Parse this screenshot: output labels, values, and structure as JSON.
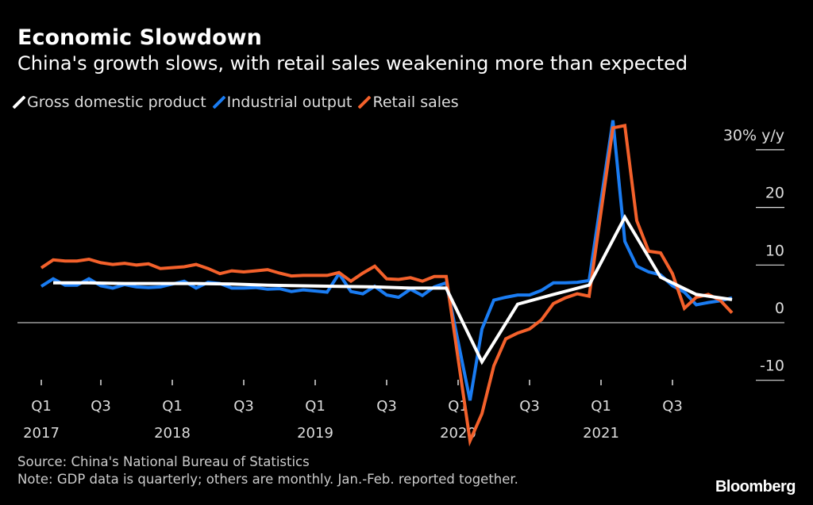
{
  "title": "Economic Slowdown",
  "subtitle": "China's growth slows, with retail sales weakening more than expected",
  "source": "Source: China's National Bureau of Statistics",
  "note": "Note: GDP data is quarterly; others are monthly. Jan.-Feb. reported together.",
  "logo": "Bloomberg",
  "chart_data": {
    "type": "line",
    "ylim": [
      -10,
      30
    ],
    "yunit": "% y/y",
    "yticks": [
      {
        "v": 30,
        "label": "30% y/y"
      },
      {
        "v": 20,
        "label": "20"
      },
      {
        "v": 10,
        "label": "10"
      },
      {
        "v": 0,
        "label": "0"
      },
      {
        "v": -10,
        "label": "-10"
      }
    ],
    "xrange": [
      "2017-02",
      "2021-12"
    ],
    "xticks": [
      {
        "date": "2017-01",
        "q": "Q1",
        "year": "2017"
      },
      {
        "date": "2017-07",
        "q": "Q3",
        "year": ""
      },
      {
        "date": "2018-01",
        "q": "Q1",
        "year": "2018"
      },
      {
        "date": "2018-07",
        "q": "Q3",
        "year": ""
      },
      {
        "date": "2019-01",
        "q": "Q1",
        "year": "2019"
      },
      {
        "date": "2019-07",
        "q": "Q3",
        "year": ""
      },
      {
        "date": "2020-01",
        "q": "Q1",
        "year": "2020"
      },
      {
        "date": "2020-07",
        "q": "Q3",
        "year": ""
      },
      {
        "date": "2021-01",
        "q": "Q1",
        "year": "2021"
      },
      {
        "date": "2021-07",
        "q": "Q3",
        "year": ""
      }
    ],
    "legend_placement": "top-left",
    "grid": false,
    "series": [
      {
        "name": "Gross domestic product",
        "color": "#ffffff",
        "points": [
          [
            "2017-03",
            6.9
          ],
          [
            "2017-06",
            6.9
          ],
          [
            "2017-09",
            6.8
          ],
          [
            "2017-12",
            6.8
          ],
          [
            "2018-03",
            6.8
          ],
          [
            "2018-06",
            6.7
          ],
          [
            "2018-09",
            6.5
          ],
          [
            "2018-12",
            6.4
          ],
          [
            "2019-03",
            6.3
          ],
          [
            "2019-06",
            6.2
          ],
          [
            "2019-09",
            6.0
          ],
          [
            "2019-12",
            6.0
          ],
          [
            "2020-03",
            -6.8
          ],
          [
            "2020-06",
            3.2
          ],
          [
            "2020-09",
            4.9
          ],
          [
            "2020-12",
            6.5
          ],
          [
            "2021-03",
            18.3
          ],
          [
            "2021-06",
            7.9
          ],
          [
            "2021-09",
            4.9
          ],
          [
            "2021-12",
            4.0
          ]
        ]
      },
      {
        "name": "Industrial output",
        "color": "#1a7cf2",
        "points": [
          [
            "2017-02",
            6.3
          ],
          [
            "2017-03",
            7.6
          ],
          [
            "2017-04",
            6.5
          ],
          [
            "2017-05",
            6.5
          ],
          [
            "2017-06",
            7.6
          ],
          [
            "2017-07",
            6.4
          ],
          [
            "2017-08",
            6.0
          ],
          [
            "2017-09",
            6.6
          ],
          [
            "2017-10",
            6.2
          ],
          [
            "2017-11",
            6.1
          ],
          [
            "2017-12",
            6.2
          ],
          [
            "2018-02",
            7.2
          ],
          [
            "2018-03",
            6.0
          ],
          [
            "2018-04",
            7.0
          ],
          [
            "2018-05",
            6.8
          ],
          [
            "2018-06",
            6.0
          ],
          [
            "2018-07",
            6.0
          ],
          [
            "2018-08",
            6.1
          ],
          [
            "2018-09",
            5.8
          ],
          [
            "2018-10",
            5.9
          ],
          [
            "2018-11",
            5.4
          ],
          [
            "2018-12",
            5.7
          ],
          [
            "2019-02",
            5.3
          ],
          [
            "2019-03",
            8.5
          ],
          [
            "2019-04",
            5.4
          ],
          [
            "2019-05",
            5.0
          ],
          [
            "2019-06",
            6.3
          ],
          [
            "2019-07",
            4.8
          ],
          [
            "2019-08",
            4.4
          ],
          [
            "2019-09",
            5.8
          ],
          [
            "2019-10",
            4.7
          ],
          [
            "2019-11",
            6.2
          ],
          [
            "2019-12",
            6.9
          ],
          [
            "2020-02",
            -13.5
          ],
          [
            "2020-03",
            -1.1
          ],
          [
            "2020-04",
            3.9
          ],
          [
            "2020-05",
            4.4
          ],
          [
            "2020-06",
            4.8
          ],
          [
            "2020-07",
            4.8
          ],
          [
            "2020-08",
            5.6
          ],
          [
            "2020-09",
            6.9
          ],
          [
            "2020-10",
            6.9
          ],
          [
            "2020-11",
            7.0
          ],
          [
            "2020-12",
            7.3
          ],
          [
            "2021-02",
            35.1
          ],
          [
            "2021-03",
            14.1
          ],
          [
            "2021-04",
            9.8
          ],
          [
            "2021-05",
            8.8
          ],
          [
            "2021-06",
            8.3
          ],
          [
            "2021-07",
            6.4
          ],
          [
            "2021-08",
            5.3
          ],
          [
            "2021-09",
            3.1
          ],
          [
            "2021-10",
            3.5
          ],
          [
            "2021-11",
            3.8
          ],
          [
            "2021-12",
            4.3
          ]
        ]
      },
      {
        "name": "Retail sales",
        "color": "#f4612b",
        "points": [
          [
            "2017-02",
            9.5
          ],
          [
            "2017-03",
            10.9
          ],
          [
            "2017-04",
            10.7
          ],
          [
            "2017-05",
            10.7
          ],
          [
            "2017-06",
            11.0
          ],
          [
            "2017-07",
            10.4
          ],
          [
            "2017-08",
            10.1
          ],
          [
            "2017-09",
            10.3
          ],
          [
            "2017-10",
            10.0
          ],
          [
            "2017-11",
            10.2
          ],
          [
            "2017-12",
            9.4
          ],
          [
            "2018-02",
            9.7
          ],
          [
            "2018-03",
            10.1
          ],
          [
            "2018-04",
            9.4
          ],
          [
            "2018-05",
            8.5
          ],
          [
            "2018-06",
            9.0
          ],
          [
            "2018-07",
            8.8
          ],
          [
            "2018-08",
            9.0
          ],
          [
            "2018-09",
            9.2
          ],
          [
            "2018-10",
            8.6
          ],
          [
            "2018-11",
            8.1
          ],
          [
            "2018-12",
            8.2
          ],
          [
            "2019-02",
            8.2
          ],
          [
            "2019-03",
            8.7
          ],
          [
            "2019-04",
            7.2
          ],
          [
            "2019-05",
            8.6
          ],
          [
            "2019-06",
            9.8
          ],
          [
            "2019-07",
            7.6
          ],
          [
            "2019-08",
            7.5
          ],
          [
            "2019-09",
            7.8
          ],
          [
            "2019-10",
            7.2
          ],
          [
            "2019-11",
            8.0
          ],
          [
            "2019-12",
            8.0
          ],
          [
            "2020-02",
            -20.5
          ],
          [
            "2020-03",
            -15.8
          ],
          [
            "2020-04",
            -7.5
          ],
          [
            "2020-05",
            -2.8
          ],
          [
            "2020-06",
            -1.8
          ],
          [
            "2020-07",
            -1.1
          ],
          [
            "2020-08",
            0.5
          ],
          [
            "2020-09",
            3.3
          ],
          [
            "2020-10",
            4.3
          ],
          [
            "2020-11",
            5.0
          ],
          [
            "2020-12",
            4.6
          ],
          [
            "2021-02",
            33.8
          ],
          [
            "2021-03",
            34.2
          ],
          [
            "2021-04",
            17.7
          ],
          [
            "2021-05",
            12.4
          ],
          [
            "2021-06",
            12.1
          ],
          [
            "2021-07",
            8.5
          ],
          [
            "2021-08",
            2.5
          ],
          [
            "2021-09",
            4.4
          ],
          [
            "2021-10",
            4.9
          ],
          [
            "2021-11",
            3.9
          ],
          [
            "2021-12",
            1.7
          ]
        ]
      }
    ]
  }
}
